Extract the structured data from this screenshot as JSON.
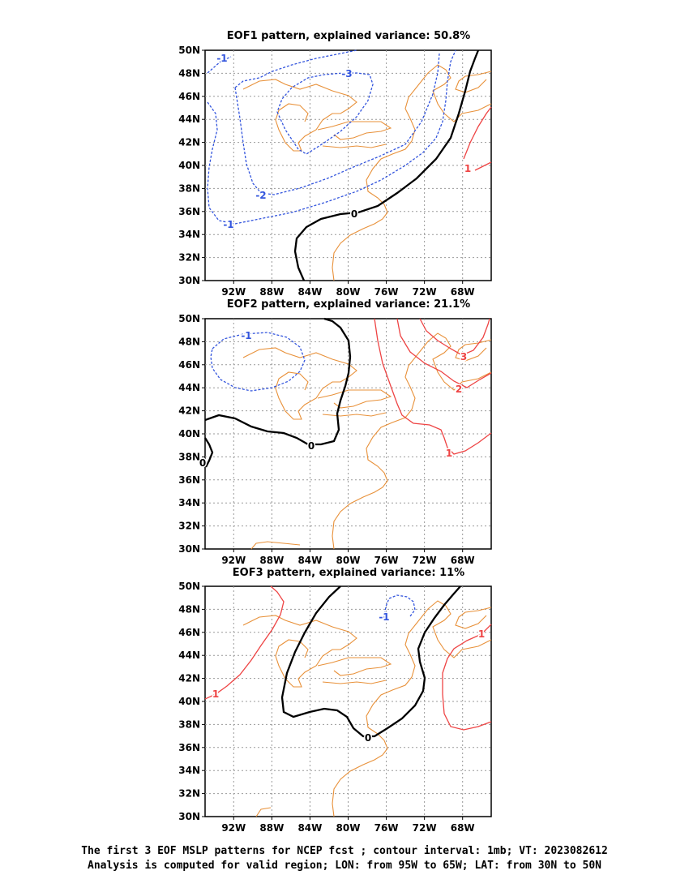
{
  "panels": [
    {
      "title": "EOF1 pattern, explained variance: 50.8%",
      "contour_labels": [
        {
          "text": "-1",
          "color": "#3355dd"
        },
        {
          "text": "-3",
          "color": "#3355dd"
        },
        {
          "text": "-2",
          "color": "#3355dd"
        },
        {
          "text": "-1",
          "color": "#3355dd"
        },
        {
          "text": "0",
          "color": "#000000"
        },
        {
          "text": "1",
          "color": "#ee4444"
        }
      ]
    },
    {
      "title": "EOF2 pattern, explained variance: 21.1%",
      "contour_labels": [
        {
          "text": "-1",
          "color": "#3355dd"
        },
        {
          "text": "0",
          "color": "#000000"
        },
        {
          "text": "0",
          "color": "#000000"
        },
        {
          "text": "3",
          "color": "#ee4444"
        },
        {
          "text": "2",
          "color": "#ee4444"
        },
        {
          "text": "1",
          "color": "#ee4444"
        }
      ]
    },
    {
      "title": "EOF3 pattern, explained variance: 11%",
      "contour_labels": [
        {
          "text": "-1",
          "color": "#3355dd"
        },
        {
          "text": "0",
          "color": "#000000"
        },
        {
          "text": "1",
          "color": "#ee4444"
        },
        {
          "text": "1",
          "color": "#ee4444"
        }
      ]
    }
  ],
  "axes": {
    "y_ticks": [
      "50N",
      "48N",
      "46N",
      "44N",
      "42N",
      "40N",
      "38N",
      "36N",
      "34N",
      "32N",
      "30N"
    ],
    "x_ticks": [
      "92W",
      "88W",
      "84W",
      "80W",
      "76W",
      "72W",
      "68W"
    ]
  },
  "colors": {
    "negative_contour": "#3355dd",
    "positive_contour": "#ee4444",
    "zero_contour": "#000000",
    "coastline": "#e8913a",
    "grid": "#999999"
  },
  "caption": {
    "line1": "The first 3 EOF MSLP patterns for NCEP fcst ; contour interval: 1mb; VT: 2023082612",
    "line2": "Analysis is computed for valid region; LON: from 95W to 65W; LAT: from 30N to 50N"
  }
}
